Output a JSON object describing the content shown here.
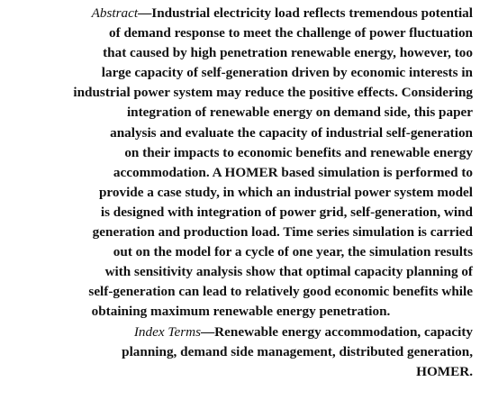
{
  "abstract": {
    "label": "Abstract",
    "lines": [
      "—Industrial electricity load reflects tremendous potential",
      "of demand response to meet the challenge of power fluctuation",
      "that caused by high penetration renewable energy, however, too",
      "large capacity of self-generation driven by economic interests in",
      "industrial power system may reduce the positive effects. Considering",
      "integration of renewable energy on demand side, this paper",
      "analysis and evaluate the capacity of industrial self-generation",
      "on their impacts to economic benefits and renewable energy",
      "accommodation. A HOMER based simulation is performed to",
      "provide a case study, in which an industrial power system model",
      "is designed with integration of power grid, self-generation, wind",
      "generation and production load. Time series simulation is carried",
      "out on the model for a cycle of one year, the simulation results",
      "with sensitivity analysis show that optimal capacity planning of",
      "self-generation can lead to relatively good economic benefits while",
      "obtaining maximum renewable energy penetration."
    ]
  },
  "index_terms": {
    "label": "Index Terms",
    "lines": [
      "—Renewable energy accommodation, capacity",
      "planning, demand side management, distributed generation,",
      "HOMER."
    ]
  }
}
